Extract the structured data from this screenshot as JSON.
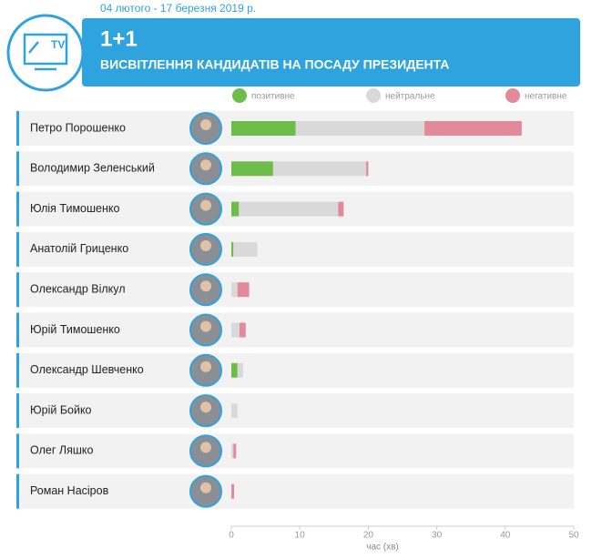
{
  "chart_data": {
    "type": "stacked-barh",
    "date_range": "04 лютого - 17 березня 2019 р.",
    "title": "1+1",
    "subtitle": "ВИСВІТЛЕННЯ КАНДИДАТІВ НА ПОСАДУ ПРЕЗИДЕНТА",
    "xlabel": "час (хв)",
    "categories": [
      "Петро Порошенко",
      "Володимир Зеленський",
      "Юлія Тимошенко",
      "Анатолій Гриценко",
      "Олександр Вілкул",
      "Юрій Тимошенко",
      "Олександр Шевченко",
      "Юрій Бойко",
      "Олег Ляшко",
      "Роман Насіров"
    ],
    "series": [
      {
        "name": "позитивне",
        "color": "#6cbd4a",
        "values": [
          9.4,
          6.1,
          1.1,
          0.3,
          0,
          0,
          0.9,
          0,
          0,
          0
        ]
      },
      {
        "name": "нейтральне",
        "color": "#d9d9d9",
        "values": [
          18.8,
          13.6,
          14.5,
          3.5,
          0.9,
          1.2,
          0.8,
          0.9,
          0.3,
          0
        ]
      },
      {
        "name": "негативне",
        "color": "#e3899a",
        "values": [
          14.2,
          0.3,
          0.8,
          0,
          1.7,
          0.9,
          0,
          0,
          0.4,
          0.4
        ]
      }
    ],
    "xlim": [
      0,
      50
    ],
    "xticks": [
      0,
      10,
      20,
      30,
      40,
      50
    ]
  }
}
